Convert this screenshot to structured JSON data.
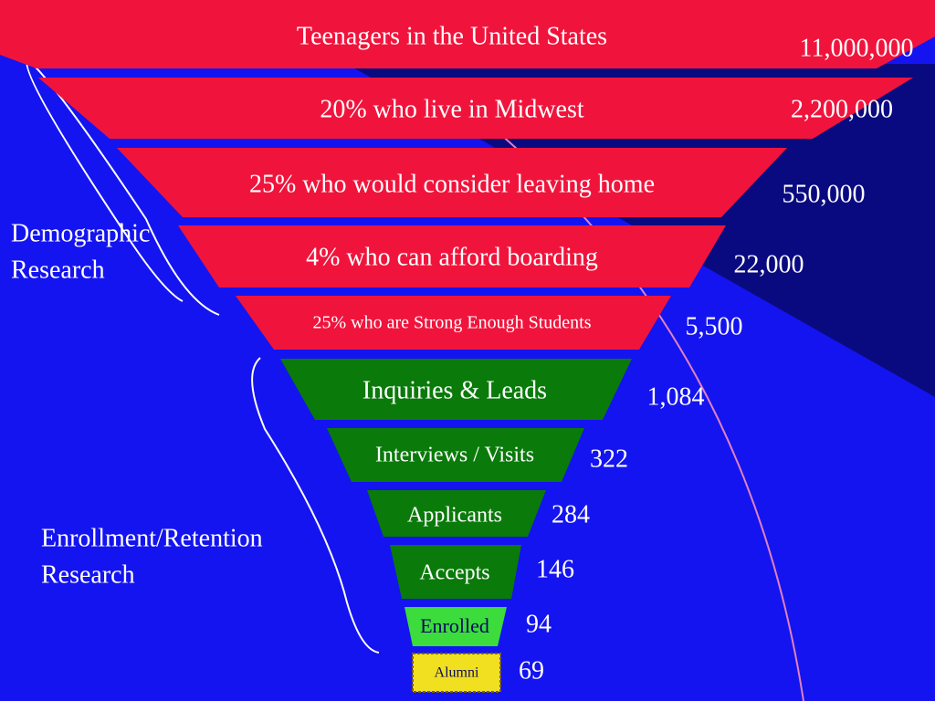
{
  "stages": [
    {
      "label": "Teenagers in the United States",
      "value": "11,000,000"
    },
    {
      "label": "20% who live in Midwest",
      "value": "2,200,000"
    },
    {
      "label": "25% who would consider leaving home",
      "value": "550,000"
    },
    {
      "label": "4% who can afford boarding",
      "value": "22,000"
    },
    {
      "label": "25% who are Strong Enough Students",
      "value": "5,500"
    },
    {
      "label": "Inquiries & Leads",
      "value": "1,084"
    },
    {
      "label": "Interviews / Visits",
      "value": "322"
    },
    {
      "label": "Applicants",
      "value": "284"
    },
    {
      "label": "Accepts",
      "value": "146"
    },
    {
      "label": "Enrolled",
      "value": "94"
    },
    {
      "label": "Alumni",
      "value": "69"
    }
  ],
  "groups": [
    {
      "lines": [
        "Demographic",
        "Research"
      ]
    },
    {
      "lines": [
        "Enrollment/Retention",
        "Research"
      ]
    }
  ]
}
